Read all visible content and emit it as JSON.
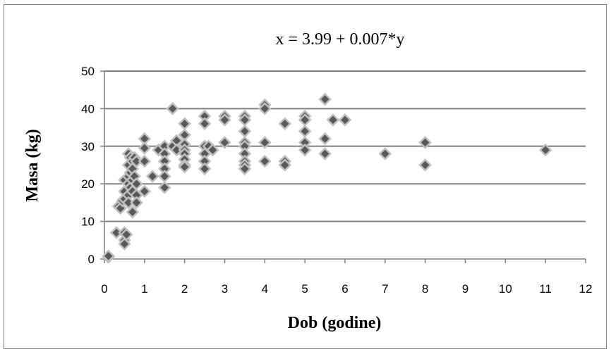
{
  "chart_data": {
    "type": "scatter",
    "title": "x = 3.99 + 0.007*y",
    "xlabel": "Dob (godine)",
    "ylabel": "Masa (kg)",
    "xlim": [
      0,
      12
    ],
    "ylim": [
      0,
      50
    ],
    "x_ticks": [
      0,
      1,
      2,
      3,
      4,
      5,
      6,
      7,
      8,
      9,
      10,
      11,
      12
    ],
    "y_ticks": [
      0,
      10,
      20,
      30,
      40,
      50
    ],
    "grid": "horizontal",
    "marker": "diamond",
    "marker_color": "#595959",
    "marker_edge_color": "#bfbfbf",
    "points": [
      [
        0.1,
        0.5
      ],
      [
        0.1,
        0.8
      ],
      [
        0.3,
        7
      ],
      [
        0.35,
        14
      ],
      [
        0.4,
        13.5
      ],
      [
        0.45,
        15.5
      ],
      [
        0.5,
        7
      ],
      [
        0.5,
        5
      ],
      [
        0.5,
        4
      ],
      [
        0.5,
        21
      ],
      [
        0.5,
        18
      ],
      [
        0.5,
        16
      ],
      [
        0.55,
        6.5
      ],
      [
        0.6,
        28
      ],
      [
        0.6,
        25
      ],
      [
        0.6,
        22
      ],
      [
        0.6,
        20
      ],
      [
        0.6,
        17
      ],
      [
        0.6,
        15
      ],
      [
        0.65,
        27
      ],
      [
        0.65,
        23
      ],
      [
        0.65,
        19
      ],
      [
        0.7,
        26
      ],
      [
        0.7,
        24
      ],
      [
        0.7,
        21
      ],
      [
        0.7,
        18
      ],
      [
        0.7,
        12.5
      ],
      [
        0.75,
        27
      ],
      [
        0.75,
        22
      ],
      [
        0.8,
        26
      ],
      [
        0.8,
        20
      ],
      [
        0.8,
        17
      ],
      [
        0.8,
        15
      ],
      [
        1,
        32
      ],
      [
        1,
        29.5
      ],
      [
        1,
        26
      ],
      [
        1,
        18
      ],
      [
        1.2,
        22
      ],
      [
        1.35,
        29
      ],
      [
        1.5,
        30
      ],
      [
        1.5,
        28
      ],
      [
        1.5,
        26
      ],
      [
        1.5,
        24
      ],
      [
        1.5,
        22
      ],
      [
        1.5,
        19
      ],
      [
        1.7,
        40
      ],
      [
        1.7,
        30
      ],
      [
        1.8,
        31.5
      ],
      [
        1.8,
        29
      ],
      [
        2,
        36
      ],
      [
        2,
        33
      ],
      [
        2,
        30.5
      ],
      [
        2,
        29
      ],
      [
        2,
        28
      ],
      [
        2,
        26.5
      ],
      [
        2,
        25
      ],
      [
        2,
        24.5
      ],
      [
        2.5,
        38
      ],
      [
        2.5,
        36
      ],
      [
        2.5,
        30
      ],
      [
        2.5,
        28
      ],
      [
        2.5,
        26
      ],
      [
        2.5,
        24
      ],
      [
        2.6,
        30
      ],
      [
        2.7,
        29
      ],
      [
        3,
        38
      ],
      [
        3,
        37
      ],
      [
        3,
        31
      ],
      [
        3.5,
        38
      ],
      [
        3.5,
        37
      ],
      [
        3.5,
        34
      ],
      [
        3.5,
        31
      ],
      [
        3.5,
        30
      ],
      [
        3.5,
        28
      ],
      [
        3.5,
        26
      ],
      [
        3.5,
        25
      ],
      [
        3.5,
        24
      ],
      [
        4,
        41
      ],
      [
        4,
        40
      ],
      [
        4,
        31
      ],
      [
        4,
        26
      ],
      [
        4.5,
        36
      ],
      [
        4.5,
        26
      ],
      [
        4.5,
        25
      ],
      [
        5,
        38
      ],
      [
        5,
        37
      ],
      [
        5,
        34
      ],
      [
        5,
        31
      ],
      [
        5,
        29
      ],
      [
        5.5,
        42.5
      ],
      [
        5.5,
        32
      ],
      [
        5.5,
        28
      ],
      [
        5.7,
        37
      ],
      [
        6,
        37
      ],
      [
        7,
        28
      ],
      [
        8,
        31
      ],
      [
        8,
        25
      ],
      [
        11,
        29
      ]
    ]
  }
}
